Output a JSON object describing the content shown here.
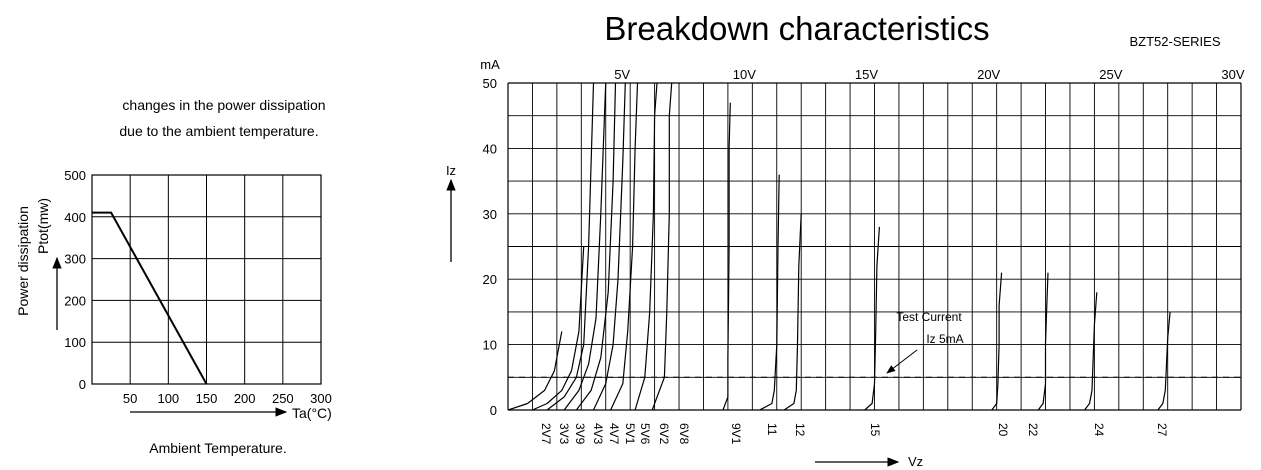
{
  "left_chart": {
    "caption_line1": "changes in the power dissipation",
    "caption_line2": "due to the ambient temperature.",
    "ylabel_outer": "Power dissipation",
    "ylabel_inner": "Ptot(mw)",
    "xlabel_arrow": "Ta(°C)",
    "xlabel_bottom": "Ambient Temperature."
  },
  "right_chart": {
    "title": "Breakdown characteristics",
    "series_label": "BZT52-SERIES",
    "y_unit": "mA",
    "y_arrow_label": "Iz",
    "x_arrow_label": "Vz",
    "annotation_line1": "Test Current",
    "annotation_line2": "Iz 5mA"
  },
  "chart_data": [
    {
      "type": "line",
      "title": "",
      "xlabel": "Ta(°C)",
      "ylabel": "Ptot(mw)",
      "x_ticks": [
        50,
        100,
        150,
        200,
        250,
        300
      ],
      "y_ticks": [
        0,
        100,
        200,
        300,
        400,
        500
      ],
      "xlim": [
        0,
        300
      ],
      "ylim": [
        0,
        500
      ],
      "grid": true,
      "series": [
        {
          "x": [
            0,
            25,
            150
          ],
          "y": [
            410,
            410,
            0
          ]
        }
      ]
    },
    {
      "type": "line",
      "title": "Breakdown characteristics",
      "xlabel": "Vz",
      "ylabel": "Iz",
      "y_unit": "mA",
      "x_ticks": [
        "5V",
        "10V",
        "15V",
        "20V",
        "25V",
        "30V"
      ],
      "x_tick_values": [
        5,
        10,
        15,
        20,
        25,
        30
      ],
      "y_ticks": [
        0,
        10,
        20,
        30,
        40,
        50
      ],
      "xlim": [
        0,
        30
      ],
      "ylim": [
        0,
        50
      ],
      "grid": true,
      "reference_line_mA": 5,
      "diode_labels": [
        "2V7",
        "3V3",
        "3V9",
        "4V3",
        "4V7",
        "5V1",
        "5V6",
        "6V2",
        "6V8",
        "9V1",
        "11",
        "12",
        "15",
        "20",
        "22",
        "24",
        "27"
      ],
      "series": [
        {
          "name": "2V7",
          "vz": [
            0,
            0.8,
            1.5,
            1.9,
            2.1,
            2.2
          ],
          "iz": [
            0,
            1,
            3,
            6,
            10,
            12
          ]
        },
        {
          "name": "3V3",
          "vz": [
            1.0,
            1.6,
            2.2,
            2.6,
            2.9,
            3.1
          ],
          "iz": [
            0,
            1,
            3,
            6,
            12,
            25
          ]
        },
        {
          "name": "3V9",
          "vz": [
            1.6,
            2.3,
            2.8,
            3.1,
            3.3,
            3.5
          ],
          "iz": [
            0,
            2,
            5,
            10,
            25,
            50
          ]
        },
        {
          "name": "4V3",
          "vz": [
            2.3,
            2.9,
            3.3,
            3.6,
            3.8,
            4.0
          ],
          "iz": [
            0,
            3,
            7,
            14,
            30,
            50
          ]
        },
        {
          "name": "4V7",
          "vz": [
            2.8,
            3.4,
            3.8,
            4.1,
            4.3,
            4.4
          ],
          "iz": [
            0,
            3,
            8,
            18,
            35,
            50
          ]
        },
        {
          "name": "5V1",
          "vz": [
            3.5,
            4.0,
            4.3,
            4.5,
            4.7,
            4.8
          ],
          "iz": [
            0,
            4,
            10,
            20,
            38,
            50
          ]
        },
        {
          "name": "5V6",
          "vz": [
            4.2,
            4.7,
            4.9,
            5.1,
            5.2,
            5.3
          ],
          "iz": [
            0,
            4,
            12,
            25,
            40,
            50
          ]
        },
        {
          "name": "6V2",
          "vz": [
            5.2,
            5.6,
            5.8,
            5.95,
            6.0,
            6.1
          ],
          "iz": [
            0,
            5,
            15,
            30,
            45,
            50
          ]
        },
        {
          "name": "6V8",
          "vz": [
            5.9,
            6.4,
            6.5,
            6.6,
            6.6,
            6.7
          ],
          "iz": [
            0,
            5,
            15,
            30,
            45,
            50
          ]
        },
        {
          "name": "9V1",
          "vz": [
            8.8,
            9.0,
            9.0,
            9.05,
            9.05,
            9.1
          ],
          "iz": [
            0,
            2,
            8,
            25,
            40,
            47
          ]
        },
        {
          "name": "11",
          "vz": [
            10.3,
            10.8,
            10.9,
            11.0,
            11.05,
            11.1
          ],
          "iz": [
            0,
            1,
            3,
            10,
            25,
            36
          ]
        },
        {
          "name": "12",
          "vz": [
            11.3,
            11.7,
            11.8,
            11.85,
            11.9,
            12.0
          ],
          "iz": [
            0,
            1,
            3,
            10,
            22,
            30
          ]
        },
        {
          "name": "15",
          "vz": [
            14.6,
            14.9,
            15.0,
            15.05,
            15.1,
            15.2
          ],
          "iz": [
            0,
            1,
            4,
            12,
            22,
            28
          ]
        },
        {
          "name": "20",
          "vz": [
            19.8,
            20.0,
            20.05,
            20.1,
            20.1,
            20.2
          ],
          "iz": [
            0,
            1,
            4,
            10,
            16,
            21
          ]
        },
        {
          "name": "22",
          "vz": [
            21.7,
            21.9,
            22.0,
            22.0,
            22.05,
            22.1
          ],
          "iz": [
            0,
            1,
            4,
            10,
            16,
            21
          ]
        },
        {
          "name": "24",
          "vz": [
            23.6,
            23.8,
            23.9,
            23.95,
            24.0,
            24.1
          ],
          "iz": [
            0,
            1,
            3,
            8,
            13,
            18
          ]
        },
        {
          "name": "27",
          "vz": [
            26.6,
            26.8,
            26.9,
            26.95,
            27.0,
            27.1
          ],
          "iz": [
            0,
            1,
            3,
            7,
            11,
            15
          ]
        }
      ]
    }
  ]
}
